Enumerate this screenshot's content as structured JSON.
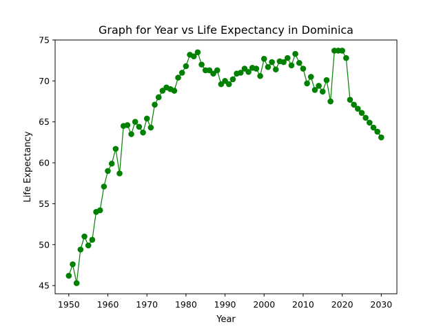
{
  "chart_data": {
    "type": "line",
    "title": "Graph for Year vs Life Expectancy in Dominica",
    "xlabel": "Year",
    "ylabel": "Life Expectancy",
    "xlim": [
      1946.5,
      2034.0
    ],
    "ylim": [
      44.0,
      75.0
    ],
    "xticks": [
      1950,
      1960,
      1970,
      1980,
      1990,
      2000,
      2010,
      2020,
      2030
    ],
    "yticks": [
      45,
      50,
      55,
      60,
      65,
      70,
      75
    ],
    "grid": false,
    "line_color": "#008000",
    "marker": "circle",
    "series": [
      {
        "x": [
          1950,
          1951,
          1952,
          1953,
          1954,
          1955,
          1956,
          1957,
          1958,
          1959,
          1960,
          1961,
          1962,
          1963,
          1964,
          1965,
          1966,
          1967,
          1968,
          1969,
          1970,
          1971,
          1972,
          1973,
          1974,
          1975,
          1976,
          1977,
          1978,
          1979,
          1980,
          1981,
          1982,
          1983,
          1984,
          1985,
          1986,
          1987,
          1988,
          1989,
          1990,
          1991,
          1992,
          1993,
          1994,
          1995,
          1996,
          1997,
          1998,
          1999,
          2000,
          2001,
          2002,
          2003,
          2004,
          2005,
          2006,
          2007,
          2008,
          2009,
          2010,
          2011,
          2012,
          2013,
          2014,
          2015,
          2016,
          2017,
          2018,
          2019,
          2020,
          2021,
          2022,
          2023,
          2024,
          2025,
          2026,
          2027,
          2028,
          2029,
          2030
        ],
        "y": [
          46.2,
          47.6,
          45.3,
          49.4,
          51.0,
          49.9,
          50.6,
          54.0,
          54.2,
          57.1,
          59.0,
          59.9,
          61.7,
          58.7,
          64.5,
          64.6,
          63.5,
          65.0,
          64.4,
          63.7,
          65.4,
          64.3,
          67.1,
          68.0,
          68.8,
          69.2,
          69.0,
          68.8,
          70.4,
          71.0,
          71.8,
          73.2,
          73.0,
          73.5,
          72.0,
          71.3,
          71.3,
          70.9,
          71.3,
          69.6,
          70.0,
          69.6,
          70.2,
          70.9,
          71.0,
          71.5,
          71.1,
          71.6,
          71.5,
          70.6,
          72.7,
          71.7,
          72.3,
          71.4,
          72.4,
          72.3,
          72.8,
          71.9,
          73.3,
          72.2,
          71.5,
          69.7,
          70.5,
          68.9,
          69.4,
          68.7,
          70.1,
          67.5,
          73.7,
          73.7,
          73.7,
          72.8,
          67.7,
          67.1,
          66.6,
          66.1,
          65.5,
          64.9,
          64.3,
          63.8,
          63.1
        ]
      }
    ]
  }
}
